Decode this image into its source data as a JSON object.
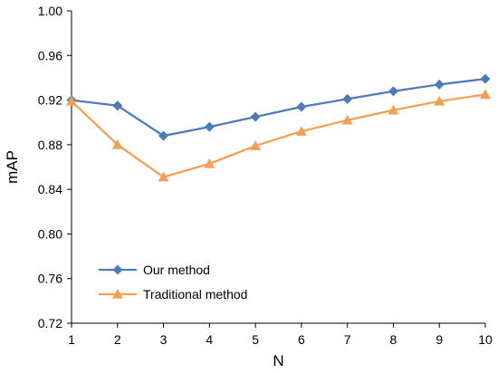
{
  "chart_data": {
    "type": "line",
    "xlabel": "N",
    "ylabel": "mAP",
    "xlim": [
      1,
      10
    ],
    "ylim": [
      0.72,
      1.0
    ],
    "x": [
      1,
      2,
      3,
      4,
      5,
      6,
      7,
      8,
      9,
      10
    ],
    "x_ticks": [
      "1",
      "2",
      "3",
      "4",
      "5",
      "6",
      "7",
      "8",
      "9",
      "10"
    ],
    "y_ticks": [
      "0.72",
      "0.76",
      "0.80",
      "0.84",
      "0.88",
      "0.92",
      "0.96",
      "1.00"
    ],
    "y_tick_values": [
      0.72,
      0.76,
      0.8,
      0.84,
      0.88,
      0.92,
      0.96,
      1.0
    ],
    "grid": false,
    "legend_position": "bottom-left",
    "series": [
      {
        "name": "Our method",
        "color": "#4e7ab8",
        "marker": "diamond",
        "values": [
          0.92,
          0.915,
          0.888,
          0.896,
          0.905,
          0.914,
          0.921,
          0.928,
          0.934,
          0.939
        ]
      },
      {
        "name": "Traditional method",
        "color": "#f2a055",
        "marker": "triangle",
        "values": [
          0.919,
          0.88,
          0.851,
          0.863,
          0.879,
          0.892,
          0.902,
          0.911,
          0.919,
          0.925
        ]
      }
    ]
  }
}
